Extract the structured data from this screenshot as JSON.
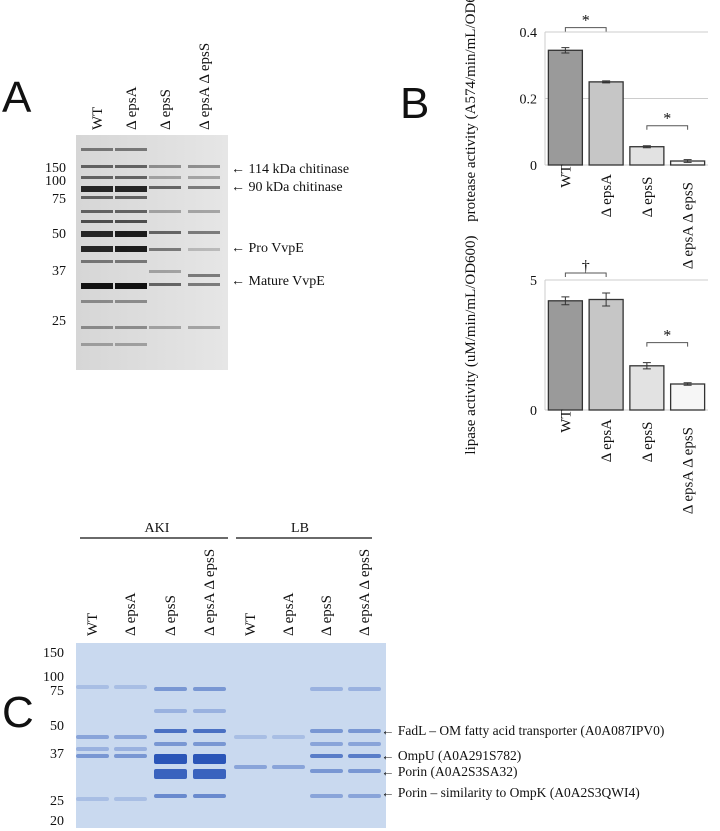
{
  "panel_a": {
    "label": "A",
    "lanes": [
      "WT",
      "Δ epsA",
      "Δ epsS",
      "Δ epsA Δ epsS"
    ],
    "markers": [
      150,
      100,
      75,
      50,
      37,
      25
    ],
    "annotations": [
      "← 114 kDa chitinase",
      "← 90 kDa chitinase",
      "← Pro VvpE",
      "← Mature VvpE"
    ]
  },
  "panel_b": {
    "label": "B"
  },
  "chart_data": [
    {
      "type": "bar",
      "ylabel": "protease activity (A574/min/mL/OD600)",
      "categories": [
        "WT",
        "Δ epsA",
        "Δ epsS",
        "Δ epsA Δ epsS"
      ],
      "values": [
        0.345,
        0.25,
        0.055,
        0.012
      ],
      "errors": [
        0.008,
        0.003,
        0.003,
        0.004
      ],
      "colors": [
        "#9a9a9a",
        "#c6c6c6",
        "#e2e2e2",
        "#f6f6f6"
      ],
      "ylim": [
        0,
        0.4
      ],
      "yticks": [
        0,
        0.2,
        0.4
      ],
      "grid": true,
      "significance": [
        {
          "label": "*",
          "pair": [
            "WT",
            "Δ epsA"
          ]
        },
        {
          "label": "*",
          "pair": [
            "Δ epsS",
            "Δ epsA Δ epsS"
          ]
        }
      ]
    },
    {
      "type": "bar",
      "ylabel": "lipase activity (uM/min/mL/OD600)",
      "categories": [
        "WT",
        "Δ epsA",
        "Δ epsS",
        "Δ epsA Δ epsS"
      ],
      "values": [
        4.2,
        4.25,
        1.7,
        1.0
      ],
      "errors": [
        0.15,
        0.25,
        0.12,
        0.05
      ],
      "colors": [
        "#9a9a9a",
        "#c6c6c6",
        "#e2e2e2",
        "#f6f6f6"
      ],
      "ylim": [
        0,
        5
      ],
      "yticks": [
        0,
        5
      ],
      "grid": true,
      "significance": [
        {
          "label": "†",
          "pair": [
            "WT",
            "Δ epsA"
          ]
        },
        {
          "label": "*",
          "pair": [
            "Δ epsS",
            "Δ epsA Δ epsS"
          ]
        }
      ]
    }
  ],
  "panel_c": {
    "label": "C",
    "groups": [
      "AKI",
      "LB"
    ],
    "lanes": [
      "WT",
      "Δ epsA",
      "Δ epsS",
      "Δ epsA Δ epsS",
      "WT",
      "Δ epsA",
      "Δ epsS",
      "Δ epsA Δ epsS"
    ],
    "markers": [
      150,
      100,
      75,
      50,
      37,
      25,
      20
    ],
    "annotations": [
      "← FadL – OM fatty acid transporter (A0A087IPV0)",
      "← OmpU (A0A291S782)",
      "← Porin (A0A2S3SA32)",
      "← Porin – similarity to OmpK (A0A2S3QWI4)"
    ]
  }
}
